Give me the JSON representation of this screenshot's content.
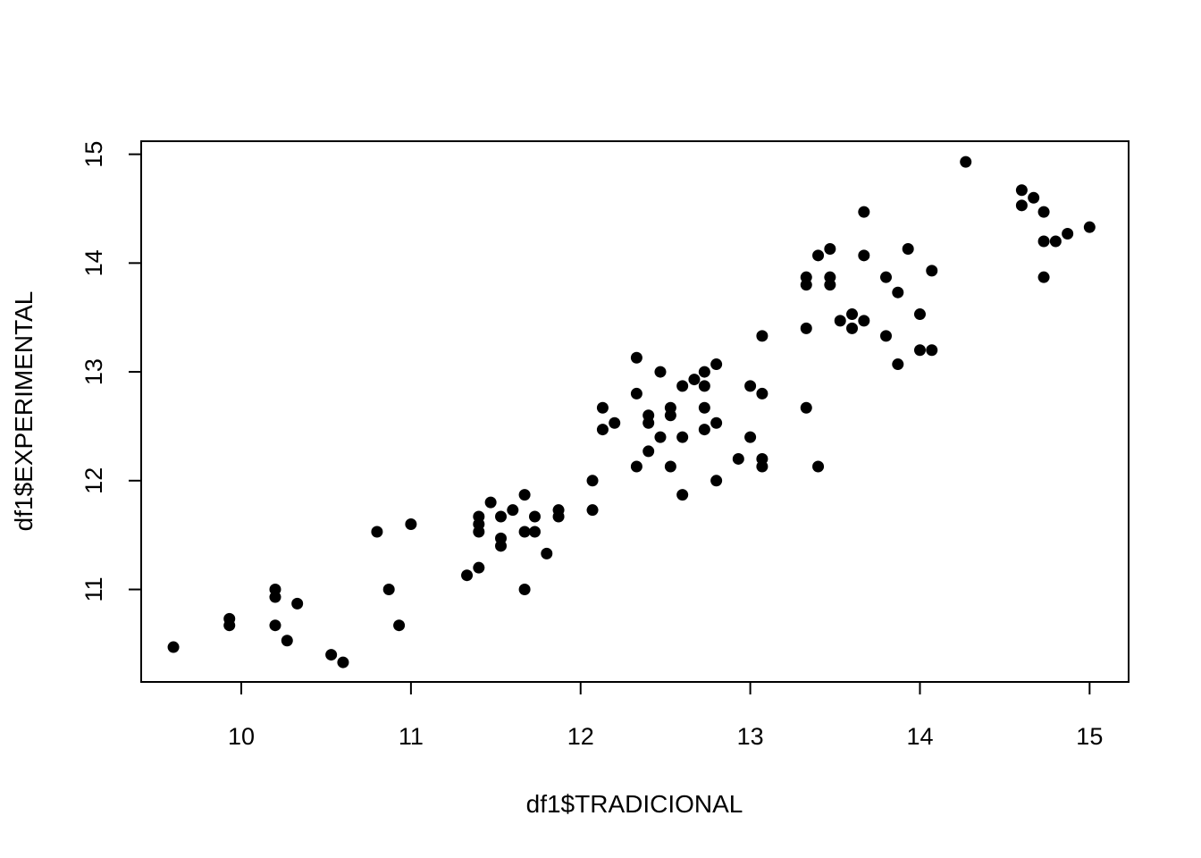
{
  "chart_data": {
    "type": "scatter",
    "title": "",
    "xlabel": "df1$TRADICIONAL",
    "ylabel": "df1$EXPERIMENTAL",
    "xlim": [
      9.41,
      15.23
    ],
    "ylim": [
      10.15,
      15.12
    ],
    "xticks": [
      10,
      11,
      12,
      13,
      14,
      15
    ],
    "yticks": [
      11,
      12,
      13,
      14,
      15
    ],
    "grid": false,
    "legend": "none",
    "point_color": "#000000",
    "points": [
      [
        9.6,
        10.47
      ],
      [
        9.93,
        10.73
      ],
      [
        9.93,
        10.67
      ],
      [
        10.2,
        11.0
      ],
      [
        10.2,
        10.93
      ],
      [
        10.2,
        10.67
      ],
      [
        10.27,
        10.53
      ],
      [
        10.33,
        10.87
      ],
      [
        10.53,
        10.4
      ],
      [
        10.6,
        10.33
      ],
      [
        10.8,
        11.53
      ],
      [
        10.87,
        11.0
      ],
      [
        10.93,
        10.67
      ],
      [
        11.0,
        11.6
      ],
      [
        11.33,
        11.13
      ],
      [
        11.4,
        11.2
      ],
      [
        11.4,
        11.67
      ],
      [
        11.4,
        11.6
      ],
      [
        11.4,
        11.53
      ],
      [
        11.47,
        11.8
      ],
      [
        11.53,
        11.67
      ],
      [
        11.53,
        11.47
      ],
      [
        11.53,
        11.4
      ],
      [
        11.6,
        11.73
      ],
      [
        11.67,
        11.87
      ],
      [
        11.67,
        11.53
      ],
      [
        11.67,
        11.0
      ],
      [
        11.73,
        11.67
      ],
      [
        11.73,
        11.53
      ],
      [
        11.8,
        11.33
      ],
      [
        11.87,
        11.73
      ],
      [
        11.87,
        11.67
      ],
      [
        12.07,
        12.0
      ],
      [
        12.07,
        11.73
      ],
      [
        12.13,
        12.67
      ],
      [
        12.13,
        12.47
      ],
      [
        12.2,
        12.53
      ],
      [
        12.33,
        13.13
      ],
      [
        12.33,
        12.8
      ],
      [
        12.33,
        12.13
      ],
      [
        12.4,
        12.6
      ],
      [
        12.4,
        12.53
      ],
      [
        12.4,
        12.27
      ],
      [
        12.47,
        13.0
      ],
      [
        12.47,
        12.4
      ],
      [
        12.53,
        12.67
      ],
      [
        12.53,
        12.6
      ],
      [
        12.53,
        12.13
      ],
      [
        12.6,
        12.87
      ],
      [
        12.6,
        12.4
      ],
      [
        12.6,
        11.87
      ],
      [
        12.67,
        12.93
      ],
      [
        12.73,
        13.0
      ],
      [
        12.73,
        12.87
      ],
      [
        12.73,
        12.67
      ],
      [
        12.73,
        12.47
      ],
      [
        12.8,
        13.07
      ],
      [
        12.8,
        12.53
      ],
      [
        12.8,
        12.0
      ],
      [
        12.93,
        12.2
      ],
      [
        13.0,
        12.87
      ],
      [
        13.0,
        12.4
      ],
      [
        13.07,
        13.33
      ],
      [
        13.07,
        12.8
      ],
      [
        13.07,
        12.2
      ],
      [
        13.07,
        12.13
      ],
      [
        13.33,
        13.87
      ],
      [
        13.33,
        13.8
      ],
      [
        13.33,
        13.4
      ],
      [
        13.33,
        12.67
      ],
      [
        13.4,
        14.07
      ],
      [
        13.4,
        12.13
      ],
      [
        13.47,
        14.13
      ],
      [
        13.47,
        13.87
      ],
      [
        13.47,
        13.8
      ],
      [
        13.53,
        13.47
      ],
      [
        13.6,
        13.53
      ],
      [
        13.6,
        13.4
      ],
      [
        13.67,
        14.47
      ],
      [
        13.67,
        14.07
      ],
      [
        13.67,
        13.47
      ],
      [
        13.8,
        13.87
      ],
      [
        13.8,
        13.33
      ],
      [
        13.87,
        13.73
      ],
      [
        13.87,
        13.07
      ],
      [
        13.93,
        14.13
      ],
      [
        14.0,
        13.53
      ],
      [
        14.0,
        13.2
      ],
      [
        14.07,
        13.93
      ],
      [
        14.07,
        13.2
      ],
      [
        14.27,
        14.93
      ],
      [
        14.6,
        14.67
      ],
      [
        14.6,
        14.53
      ],
      [
        14.67,
        14.6
      ],
      [
        14.73,
        14.47
      ],
      [
        14.73,
        14.2
      ],
      [
        14.73,
        13.87
      ],
      [
        14.8,
        14.2
      ],
      [
        14.87,
        14.27
      ],
      [
        15.0,
        14.33
      ]
    ]
  }
}
